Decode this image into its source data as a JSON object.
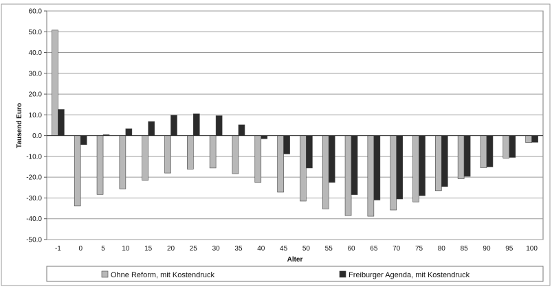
{
  "chart_data": {
    "type": "bar",
    "xlabel": "Alter",
    "ylabel": "Tausend Euro",
    "ylim": [
      -50,
      60
    ],
    "yticks": [
      "60.0",
      "50.0",
      "40.0",
      "30.0",
      "20.0",
      "10.0",
      "0.0",
      "-10.0",
      "-20.0",
      "-30.0",
      "-40.0",
      "-50.0"
    ],
    "ytick_values": [
      60,
      50,
      40,
      30,
      20,
      10,
      0,
      -10,
      -20,
      -30,
      -40,
      -50
    ],
    "grid": true,
    "legend_position": "bottom",
    "categories": [
      "-1",
      "0",
      "5",
      "10",
      "15",
      "20",
      "25",
      "30",
      "35",
      "40",
      "45",
      "50",
      "55",
      "60",
      "65",
      "70",
      "75",
      "80",
      "85",
      "90",
      "95",
      "100"
    ],
    "series": [
      {
        "name": "Ohne Reform, mit Kostendruck",
        "color": "#b8b8b8",
        "values": [
          50.8,
          -33.8,
          -28.3,
          -25.6,
          -21.5,
          -18.0,
          -16.1,
          -15.6,
          -18.3,
          -22.5,
          -27.2,
          -31.5,
          -35.3,
          -38.5,
          -38.8,
          -35.8,
          -31.9,
          -26.5,
          -20.8,
          -15.5,
          -10.8,
          -3.3
        ]
      },
      {
        "name": "Freiburger Agenda, mit Kostendruck",
        "color": "#2b2b2b",
        "values": [
          12.6,
          -4.3,
          0.5,
          3.3,
          6.8,
          9.8,
          10.5,
          9.6,
          5.2,
          -1.5,
          -8.8,
          -15.6,
          -22.5,
          -28.4,
          -31.0,
          -30.5,
          -28.9,
          -24.5,
          -19.6,
          -15.0,
          -10.5,
          -3.2
        ]
      }
    ]
  }
}
